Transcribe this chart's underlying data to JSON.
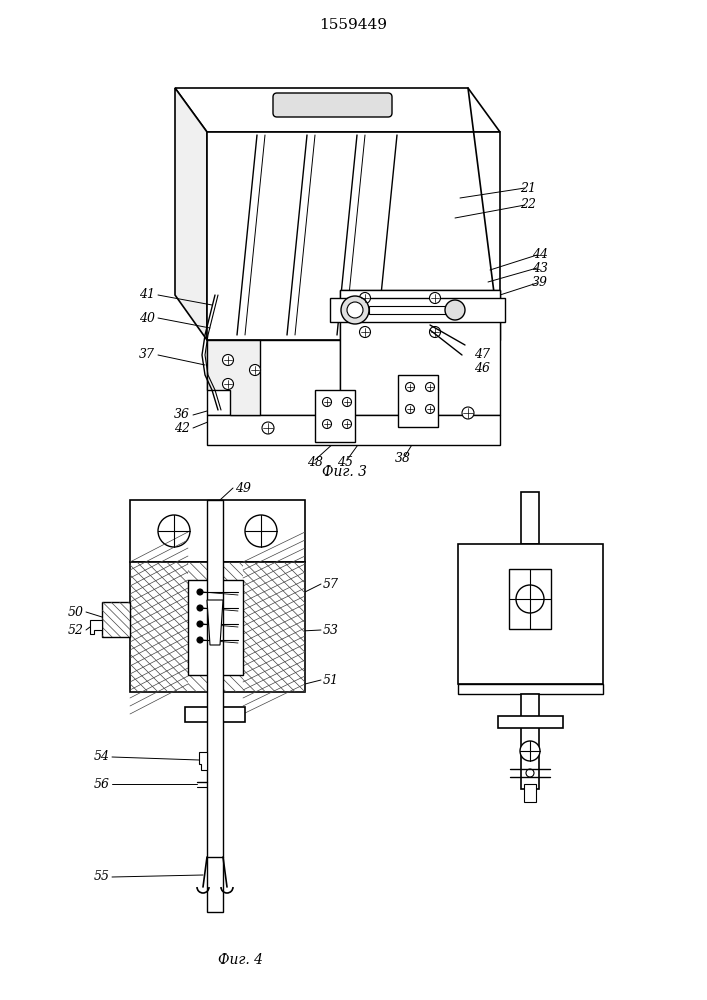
{
  "title": "1559449",
  "fig3_label": "Фиг. 3",
  "fig4_label": "Фиг. 4",
  "bg_color": "#ffffff",
  "line_color": "#000000",
  "fig_width": 7.07,
  "fig_height": 10.0,
  "label_fontsize": 9,
  "title_fontsize": 11
}
